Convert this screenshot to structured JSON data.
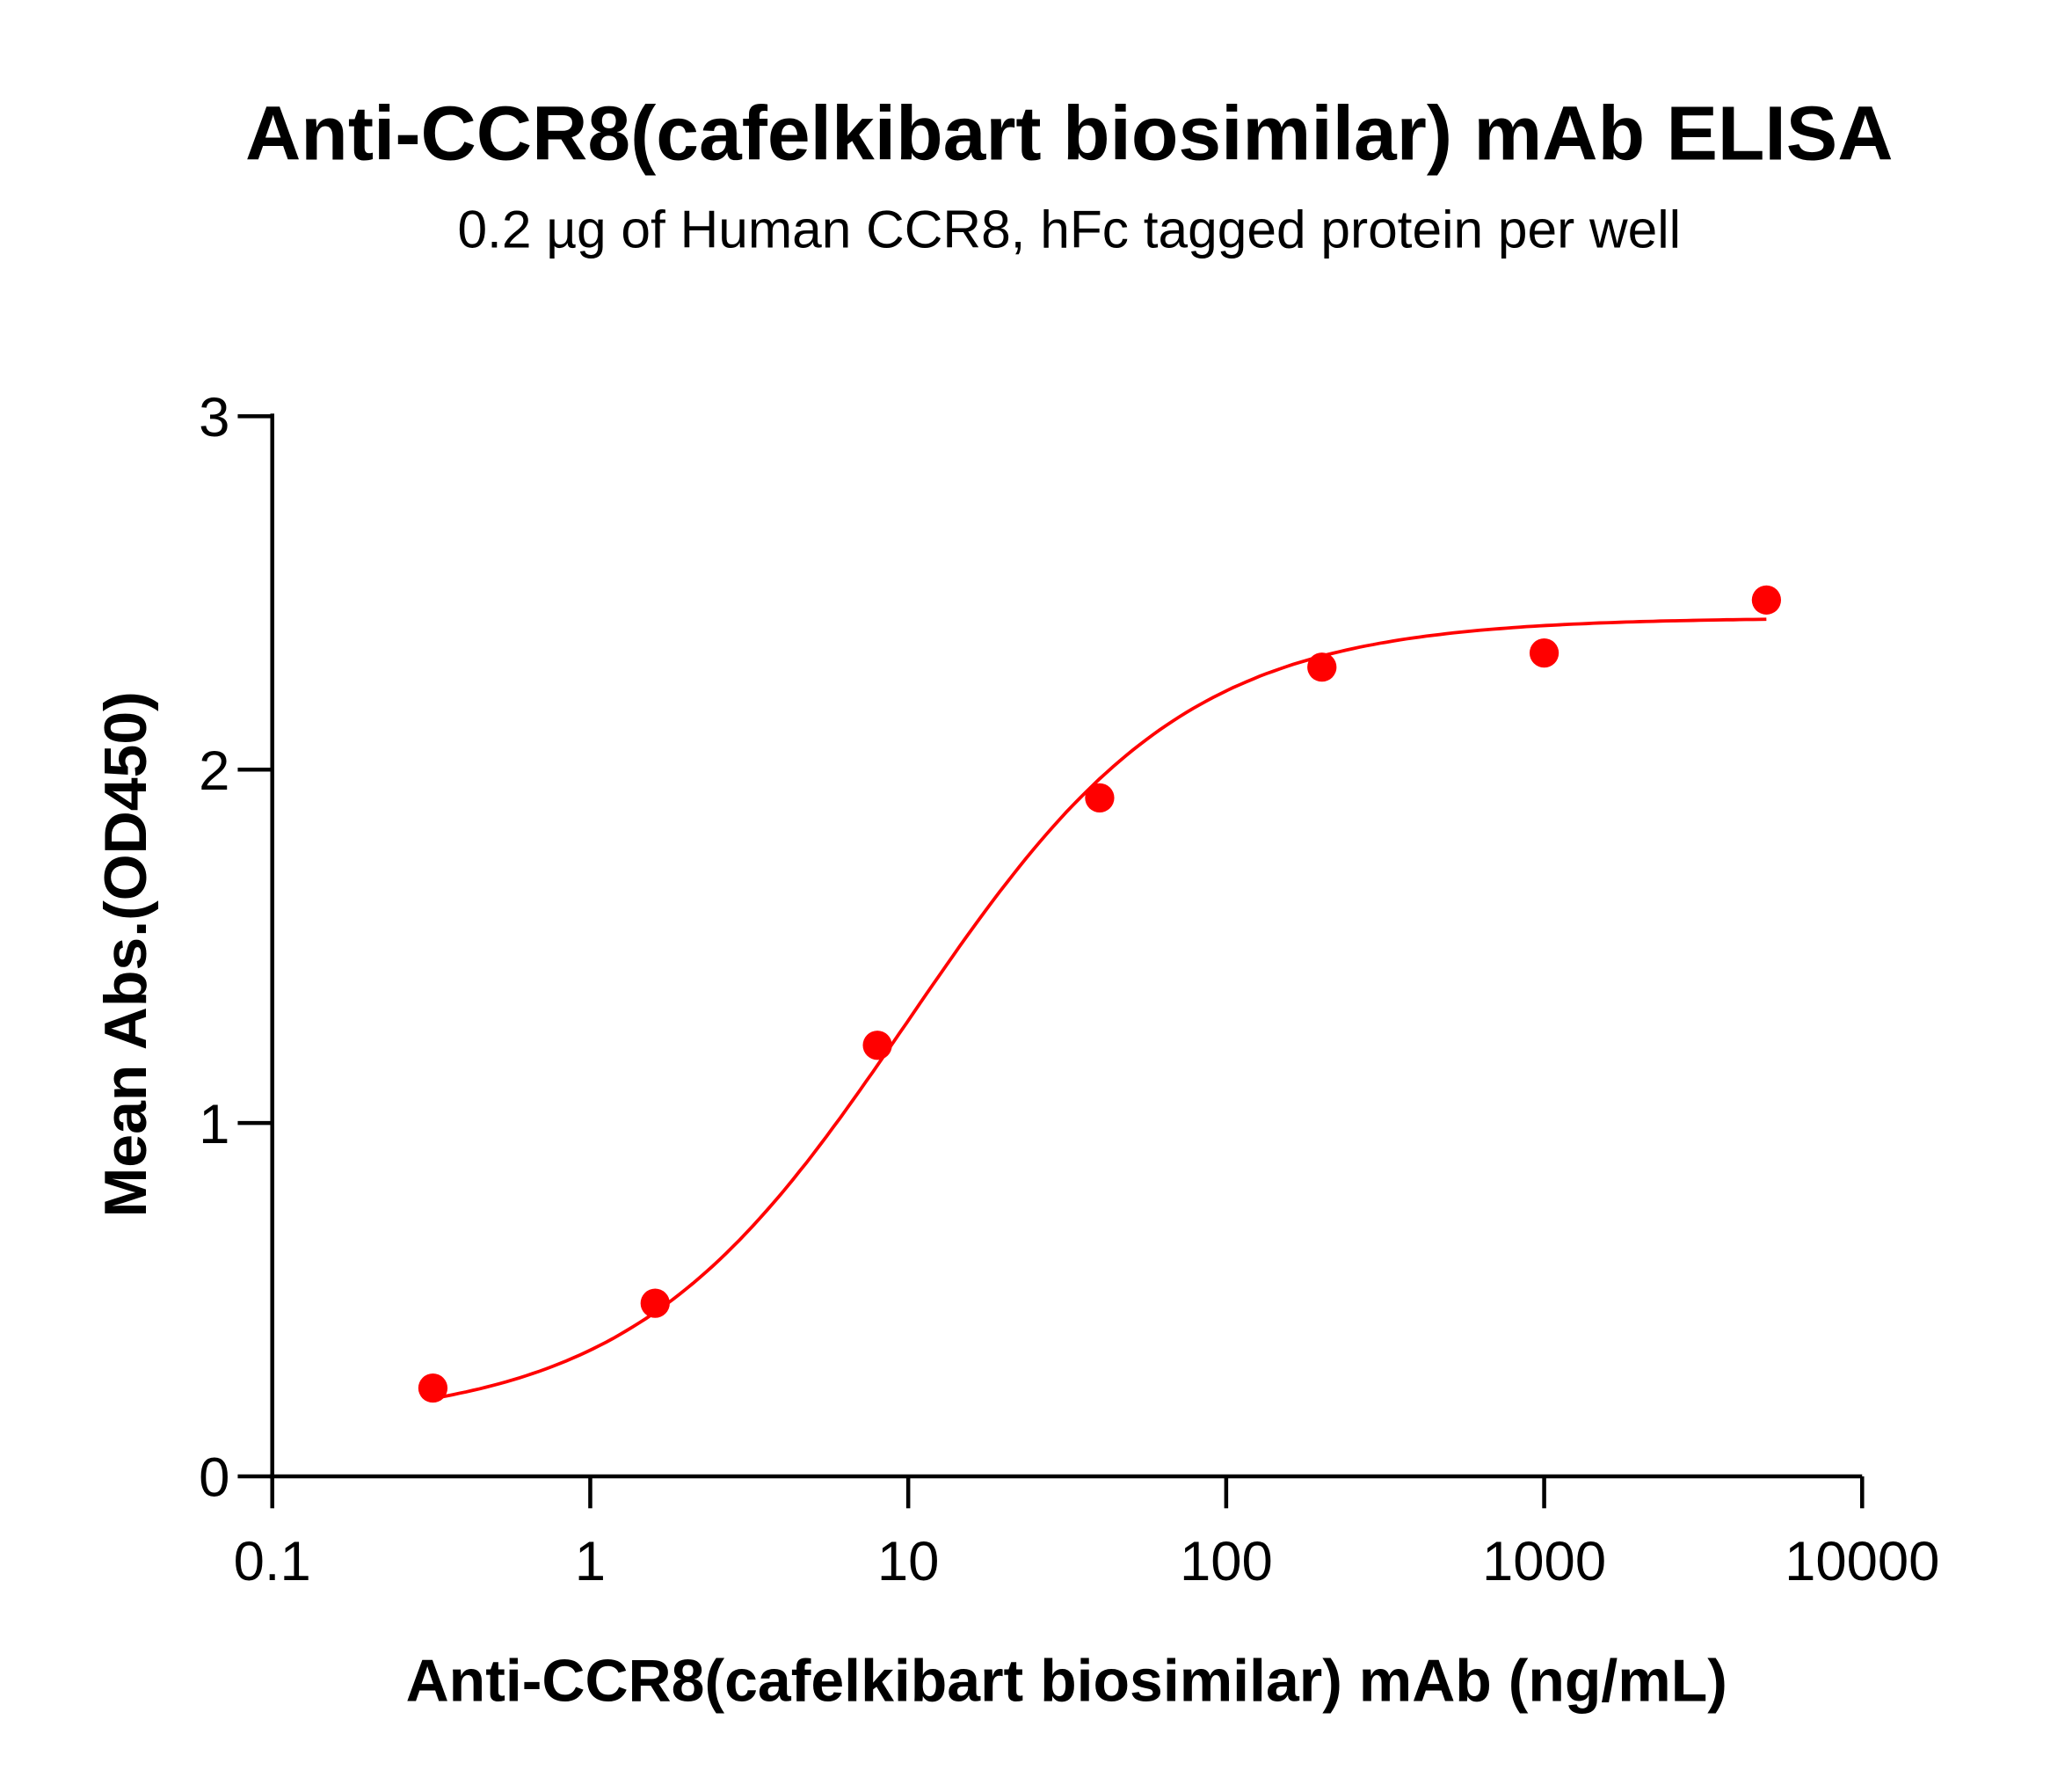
{
  "chart_data": {
    "type": "scatter",
    "title": "Anti-CCR8(cafelkibart biosimilar) mAb ELISA",
    "subtitle": "0.2 µg of Human CCR8, hFc tagged protein per well",
    "xlabel": "Anti-CCR8(cafelkibart biosimilar) mAb (ng/mL)",
    "ylabel": "Mean Abs.(OD450)",
    "xscale": "log",
    "xlim": [
      0.1,
      10000
    ],
    "ylim": [
      0,
      3
    ],
    "xticks": [
      "0.1",
      "1",
      "10",
      "100",
      "1000",
      "10000"
    ],
    "yticks": [
      "0",
      "1",
      "2",
      "3"
    ],
    "grid": false,
    "color": "#ff0000",
    "points": [
      {
        "x": 0.32,
        "y": 0.25
      },
      {
        "x": 1.6,
        "y": 0.49
      },
      {
        "x": 8,
        "y": 1.22
      },
      {
        "x": 40,
        "y": 1.92
      },
      {
        "x": 200,
        "y": 2.29
      },
      {
        "x": 1000,
        "y": 2.33
      },
      {
        "x": 5000,
        "y": 2.48
      }
    ],
    "fit": {
      "model": "4PL",
      "bottom": 0.15,
      "top": 2.43,
      "ec50": 10,
      "hill": 1,
      "xrange": [
        0.32,
        5000
      ]
    }
  }
}
